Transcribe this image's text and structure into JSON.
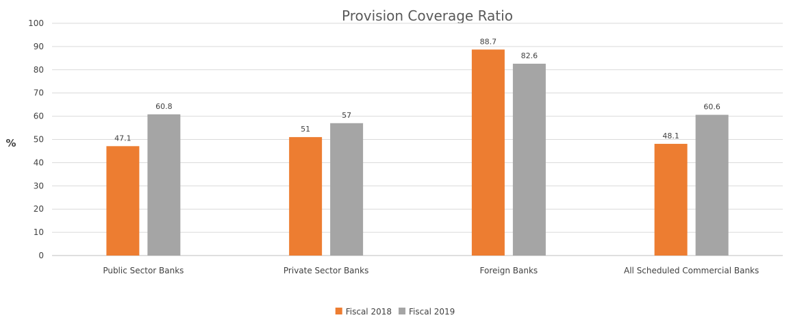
{
  "chart_data": {
    "type": "bar",
    "title": "Provision Coverage Ratio",
    "xlabel": "",
    "ylabel": "%",
    "ylim": [
      0,
      100
    ],
    "yticks": [
      0,
      10,
      20,
      30,
      40,
      50,
      60,
      70,
      80,
      90,
      100
    ],
    "grid": true,
    "legend_position": "bottom",
    "categories": [
      "Public Sector Banks",
      "Private Sector Banks",
      "Foreign Banks",
      "All Scheduled Commercial Banks"
    ],
    "series": [
      {
        "name": "Fiscal 2018",
        "color": "#ED7D31",
        "values": [
          47.1,
          51,
          88.7,
          48.1
        ]
      },
      {
        "name": "Fiscal 2019",
        "color": "#A5A5A5",
        "values": [
          60.8,
          57,
          82.6,
          60.6
        ]
      }
    ]
  }
}
